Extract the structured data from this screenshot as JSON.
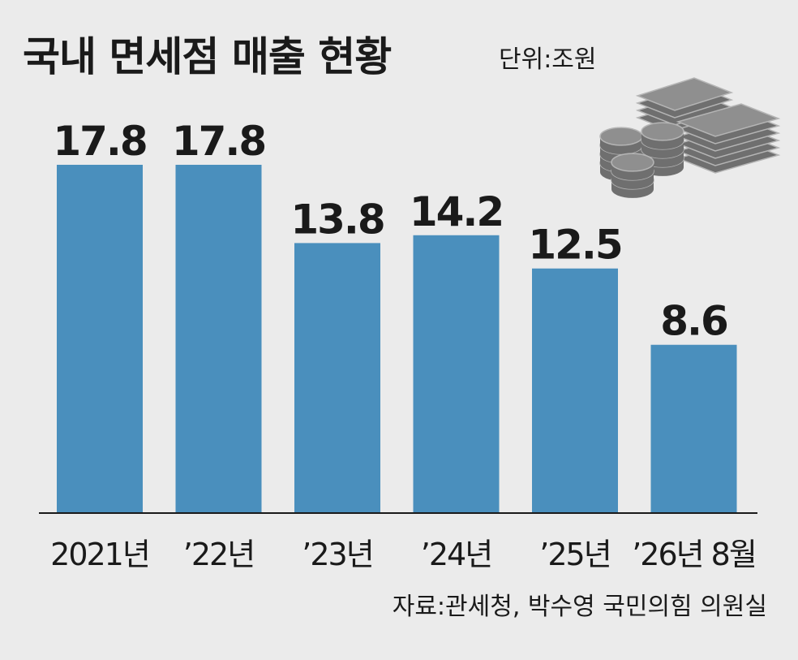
{
  "chart_data": {
    "type": "bar",
    "title": "국내 면세점 매출 현황",
    "unit": "단위:조원",
    "categories": [
      "2021년",
      "’22년",
      "’23년",
      "’24년",
      "’25년",
      "’26년 8월"
    ],
    "values": [
      17.8,
      17.8,
      13.8,
      14.2,
      12.5,
      8.6
    ],
    "value_labels": [
      "17.8",
      "17.8",
      "13.8",
      "14.2",
      "12.5",
      "8.6"
    ],
    "xlabel": "",
    "ylabel": "",
    "ylim": [
      0,
      17.8
    ],
    "grid": false,
    "source": "자료:관세청, 박수영 국민의힘 의원실",
    "colors": {
      "bar": "#4a8fbd",
      "background": "#ebebeb",
      "text": "#1a1a1a",
      "axis": "#1a1a1a",
      "icon": "#8f8f8f"
    },
    "icon": "money-stack-icon"
  }
}
